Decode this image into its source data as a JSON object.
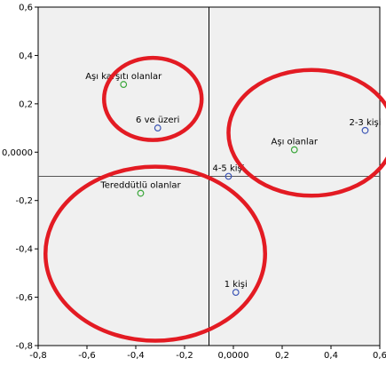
{
  "chart_data": {
    "type": "scatter",
    "title": "",
    "xlabel": "",
    "ylabel": "",
    "xlim": [
      -0.8,
      0.6
    ],
    "ylim": [
      -0.8,
      0.6
    ],
    "x_ticks": [
      "-0,8",
      "-0,6",
      "-0,4",
      "-0,2",
      "0,0000",
      "0,2",
      "0,4",
      "0,6"
    ],
    "y_ticks": [
      "0,6",
      "0,4",
      "0,2",
      "0,0000",
      "-0,2",
      "-0,4",
      "-0,6",
      "-0,8"
    ],
    "grid": false,
    "reference_lines": {
      "x": -0.1,
      "y": -0.1
    },
    "series": [
      {
        "color": "#3b55b5",
        "points": [
          {
            "label": "6 ve üzeri",
            "x": -0.31,
            "y": 0.1
          },
          {
            "label": "2-3 kişi",
            "x": 0.54,
            "y": 0.09
          },
          {
            "label": "4-5 kişi",
            "x": -0.02,
            "y": -0.1
          },
          {
            "label": "1 kişi",
            "x": 0.01,
            "y": -0.58
          }
        ]
      },
      {
        "color": "#3aa63a",
        "points": [
          {
            "label": "Aşı karşıtı olanlar",
            "x": -0.45,
            "y": 0.28
          },
          {
            "label": "Aşı olanlar",
            "x": 0.25,
            "y": 0.01
          },
          {
            "label": "Tereddütlü olanlar",
            "x": -0.38,
            "y": -0.17
          }
        ]
      }
    ],
    "annotations": {
      "ellipse_color": "#e31b23",
      "ellipses": [
        {
          "cx": -0.33,
          "cy": 0.22,
          "rx": 0.2,
          "ry": 0.17
        },
        {
          "cx": 0.32,
          "cy": 0.08,
          "rx": 0.34,
          "ry": 0.26
        },
        {
          "cx": -0.32,
          "cy": -0.42,
          "rx": 0.45,
          "ry": 0.36
        }
      ]
    }
  }
}
